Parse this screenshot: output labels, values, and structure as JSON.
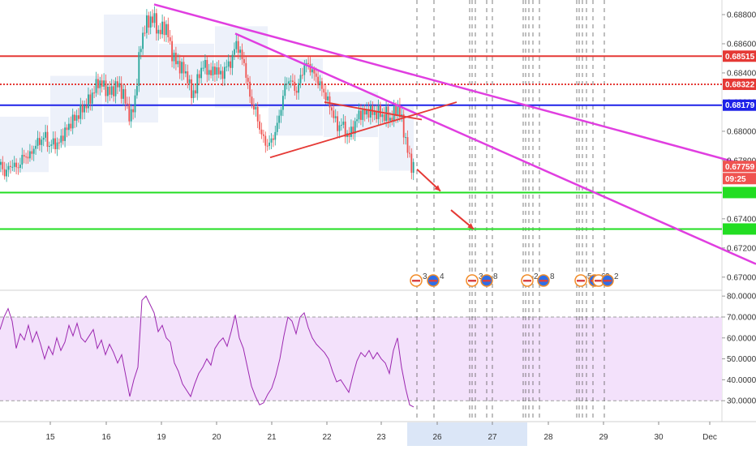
{
  "chart_data": [
    {
      "type": "candlestick",
      "panel": "price",
      "title": "",
      "xlabel": "",
      "ylabel": "",
      "ylim": [
        0.6691,
        0.689
      ],
      "x_ticks": [
        "15",
        "16",
        "19",
        "20",
        "21",
        "22",
        "23",
        "26",
        "27",
        "28",
        "29",
        "30",
        "Dec"
      ],
      "y_ticks": [
        "0.68800",
        "0.68600",
        "0.68400",
        "0.68200",
        "0.68000",
        "0.67800",
        "0.67400",
        "0.67200",
        "0.67000"
      ],
      "series": [
        {
          "close_path": [
            [
              0,
              0.6777
            ],
            [
              5,
              0.6771
            ],
            [
              10,
              0.6775
            ],
            [
              15,
              0.6778
            ],
            [
              20,
              0.6774
            ],
            [
              25,
              0.678
            ],
            [
              30,
              0.6784
            ],
            [
              35,
              0.6782
            ],
            [
              40,
              0.6788
            ],
            [
              45,
              0.6792
            ],
            [
              50,
              0.6794
            ],
            [
              55,
              0.6797
            ],
            [
              60,
              0.6789
            ],
            [
              65,
              0.6793
            ],
            [
              70,
              0.679
            ],
            [
              75,
              0.6796
            ],
            [
              80,
              0.68
            ],
            [
              85,
              0.6805
            ],
            [
              90,
              0.6808
            ],
            [
              95,
              0.6811
            ],
            [
              100,
              0.6815
            ],
            [
              105,
              0.6818
            ],
            [
              110,
              0.6822
            ],
            [
              115,
              0.6828
            ],
            [
              120,
              0.6834
            ],
            [
              125,
              0.6832
            ],
            [
              130,
              0.6829
            ],
            [
              135,
              0.6826
            ],
            [
              140,
              0.683
            ],
            [
              145,
              0.6832
            ],
            [
              150,
              0.6826
            ],
            [
              155,
              0.6819
            ],
            [
              160,
              0.6808
            ],
            [
              165,
              0.682
            ],
            [
              168,
              0.6835
            ],
            [
              172,
              0.6858
            ],
            [
              176,
              0.6868
            ],
            [
              180,
              0.6874
            ],
            [
              185,
              0.6877
            ],
            [
              190,
              0.6876
            ],
            [
              195,
              0.6866
            ],
            [
              200,
              0.6872
            ],
            [
              205,
              0.687
            ],
            [
              210,
              0.6855
            ],
            [
              215,
              0.6848
            ],
            [
              220,
              0.6845
            ],
            [
              225,
              0.6842
            ],
            [
              230,
              0.6838
            ],
            [
              235,
              0.6825
            ],
            [
              240,
              0.6829
            ],
            [
              245,
              0.684
            ],
            [
              250,
              0.6846
            ],
            [
              255,
              0.6842
            ],
            [
              260,
              0.6839
            ],
            [
              265,
              0.6844
            ],
            [
              270,
              0.6838
            ],
            [
              275,
              0.6841
            ],
            [
              280,
              0.6846
            ],
            [
              285,
              0.6848
            ],
            [
              290,
              0.6862
            ],
            [
              295,
              0.6853
            ],
            [
              300,
              0.6847
            ],
            [
              305,
              0.683
            ],
            [
              310,
              0.6818
            ],
            [
              315,
              0.6813
            ],
            [
              320,
              0.68
            ],
            [
              325,
              0.6793
            ],
            [
              330,
              0.679
            ],
            [
              335,
              0.6795
            ],
            [
              340,
              0.6802
            ],
            [
              345,
              0.6815
            ],
            [
              350,
              0.683
            ],
            [
              355,
              0.6836
            ],
            [
              360,
              0.6832
            ],
            [
              365,
              0.6827
            ],
            [
              370,
              0.6838
            ],
            [
              375,
              0.6846
            ],
            [
              380,
              0.6845
            ],
            [
              385,
              0.684
            ],
            [
              390,
              0.6836
            ],
            [
              395,
              0.683
            ],
            [
              400,
              0.6825
            ],
            [
              405,
              0.6818
            ],
            [
              410,
              0.6812
            ],
            [
              415,
              0.6802
            ],
            [
              420,
              0.6806
            ],
            [
              425,
              0.6799
            ],
            [
              430,
              0.6797
            ],
            [
              435,
              0.6803
            ],
            [
              440,
              0.681
            ],
            [
              445,
              0.6813
            ],
            [
              450,
              0.6812
            ],
            [
              455,
              0.6815
            ],
            [
              460,
              0.6811
            ],
            [
              465,
              0.6814
            ],
            [
              470,
              0.681
            ],
            [
              475,
              0.6812
            ],
            [
              480,
              0.6808
            ],
            [
              485,
              0.6812
            ],
            [
              490,
              0.6817
            ],
            [
              495,
              0.6805
            ],
            [
              500,
              0.6792
            ],
            [
              505,
              0.6777
            ],
            [
              510,
              0.6776
            ]
          ]
        }
      ],
      "current_price": "0.67759",
      "countdown": "09:25",
      "price_tags": [
        {
          "value": "0.68515",
          "color": "#e53935"
        },
        {
          "value": "0.68322",
          "color": "#e53935"
        },
        {
          "value": "0.68179",
          "color": "#1e22e8"
        }
      ],
      "horizontal_levels": [
        {
          "value": 0.68515,
          "color": "#e53935",
          "style": "solid"
        },
        {
          "value": 0.68322,
          "color": "#e53935",
          "style": "dotted"
        },
        {
          "value": 0.68179,
          "color": "#1e22e8",
          "style": "solid"
        },
        {
          "value": 0.6758,
          "color": "#22dd22",
          "style": "solid"
        },
        {
          "value": 0.6733,
          "color": "#22dd22",
          "style": "solid"
        }
      ],
      "trendlines": [
        {
          "color": "#e03ee0",
          "from": [
            190,
            0.6887
          ],
          "to": [
            932,
            0.6775
          ]
        },
        {
          "color": "#e03ee0",
          "from": [
            290,
            0.6867
          ],
          "to": [
            932,
            0.6709
          ]
        },
        {
          "color": "#e53935",
          "from": [
            333,
            0.6782
          ],
          "to": [
            563,
            0.682
          ]
        },
        {
          "color": "#e53935",
          "from": [
            400,
            0.682
          ],
          "to": [
            520,
            0.6808
          ]
        }
      ],
      "event_markers": [
        {
          "label": "3"
        },
        {
          "label": "4"
        },
        {
          "label": "3"
        },
        {
          "label": "8"
        },
        {
          "label": "2"
        },
        {
          "label": "8"
        },
        {
          "label": "5"
        },
        {
          "label": "6"
        },
        {
          "label": "2"
        },
        {
          "label": "2"
        }
      ],
      "forecast_arrows": 3,
      "colors": {
        "up": "#26a69a",
        "down": "#ef5350",
        "trend": "#e03ee0"
      }
    },
    {
      "type": "line",
      "panel": "oscillator",
      "title": "",
      "ylim": [
        20,
        82
      ],
      "y_ticks": [
        "80.0000",
        "70.0000",
        "60.0000",
        "50.0000",
        "40.0000",
        "30.0000"
      ],
      "band": [
        30,
        70
      ],
      "series": [
        {
          "values": [
            [
              0,
              64
            ],
            [
              5,
              70
            ],
            [
              10,
              74
            ],
            [
              15,
              68
            ],
            [
              20,
              55
            ],
            [
              25,
              62
            ],
            [
              30,
              59
            ],
            [
              35,
              66
            ],
            [
              40,
              58
            ],
            [
              45,
              63
            ],
            [
              50,
              57
            ],
            [
              55,
              50
            ],
            [
              60,
              56
            ],
            [
              65,
              52
            ],
            [
              70,
              60
            ],
            [
              75,
              54
            ],
            [
              80,
              58
            ],
            [
              85,
              66
            ],
            [
              90,
              61
            ],
            [
              95,
              67
            ],
            [
              100,
              60
            ],
            [
              105,
              58
            ],
            [
              110,
              61
            ],
            [
              115,
              64
            ],
            [
              120,
              55
            ],
            [
              125,
              59
            ],
            [
              130,
              52
            ],
            [
              135,
              57
            ],
            [
              140,
              53
            ],
            [
              145,
              48
            ],
            [
              150,
              52
            ],
            [
              155,
              42
            ],
            [
              160,
              32
            ],
            [
              165,
              40
            ],
            [
              170,
              46
            ],
            [
              175,
              78
            ],
            [
              180,
              80
            ],
            [
              185,
              76
            ],
            [
              190,
              72
            ],
            [
              195,
              63
            ],
            [
              200,
              66
            ],
            [
              205,
              60
            ],
            [
              210,
              58
            ],
            [
              215,
              48
            ],
            [
              220,
              44
            ],
            [
              225,
              38
            ],
            [
              230,
              35
            ],
            [
              235,
              32
            ],
            [
              240,
              38
            ],
            [
              245,
              43
            ],
            [
              250,
              46
            ],
            [
              255,
              50
            ],
            [
              260,
              47
            ],
            [
              265,
              55
            ],
            [
              270,
              58
            ],
            [
              275,
              60
            ],
            [
              280,
              56
            ],
            [
              285,
              63
            ],
            [
              290,
              71
            ],
            [
              295,
              60
            ],
            [
              300,
              55
            ],
            [
              305,
              46
            ],
            [
              310,
              37
            ],
            [
              315,
              32
            ],
            [
              320,
              28
            ],
            [
              325,
              29
            ],
            [
              330,
              33
            ],
            [
              335,
              36
            ],
            [
              340,
              42
            ],
            [
              345,
              50
            ],
            [
              350,
              61
            ],
            [
              355,
              70
            ],
            [
              360,
              68
            ],
            [
              365,
              62
            ],
            [
              370,
              70
            ],
            [
              375,
              72
            ],
            [
              380,
              65
            ],
            [
              385,
              60
            ],
            [
              390,
              57
            ],
            [
              395,
              55
            ],
            [
              400,
              53
            ],
            [
              405,
              50
            ],
            [
              410,
              44
            ],
            [
              415,
              39
            ],
            [
              420,
              40
            ],
            [
              425,
              37
            ],
            [
              430,
              34
            ],
            [
              435,
              42
            ],
            [
              440,
              49
            ],
            [
              445,
              53
            ],
            [
              450,
              51
            ],
            [
              455,
              54
            ],
            [
              460,
              50
            ],
            [
              465,
              53
            ],
            [
              470,
              50
            ],
            [
              475,
              48
            ],
            [
              480,
              43
            ],
            [
              485,
              54
            ],
            [
              490,
              60
            ],
            [
              495,
              46
            ],
            [
              500,
              36
            ],
            [
              505,
              28
            ],
            [
              510,
              27
            ]
          ]
        }
      ],
      "colors": {
        "line": "#9c27b0",
        "band": "#f3e1fb"
      }
    }
  ],
  "colors": {
    "panel": "#ffffff",
    "grid_dash": "#555555",
    "text": "#333333"
  }
}
